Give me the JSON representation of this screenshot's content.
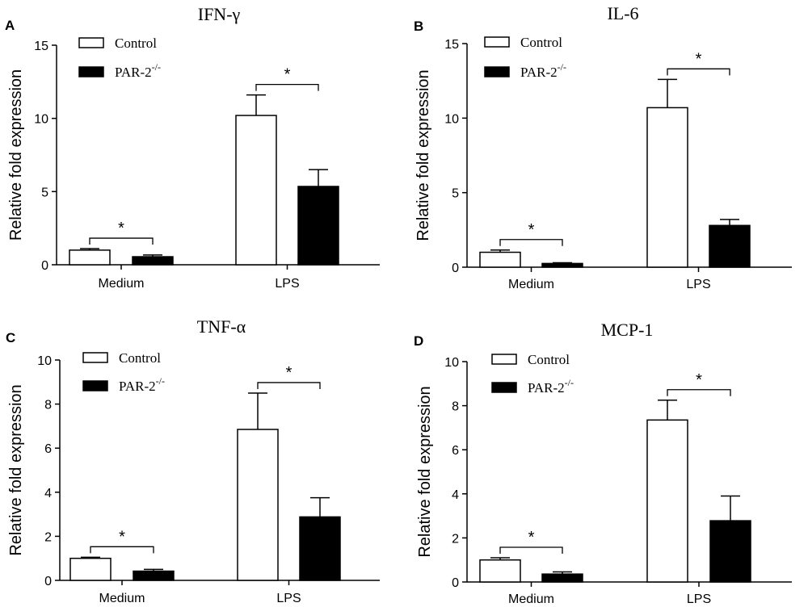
{
  "chart_data": [
    {
      "panel": "A",
      "type": "bar",
      "title": "IFN-γ",
      "ylabel": "Relative fold expression",
      "ylim": [
        0,
        15
      ],
      "yticks": [
        0,
        5,
        10,
        15
      ],
      "categories": [
        "Medium",
        "LPS"
      ],
      "series": [
        {
          "name": "Control",
          "color": "#ffffff",
          "values": [
            1.0,
            10.2
          ],
          "errors": [
            0.1,
            1.4
          ]
        },
        {
          "name": "PAR-2",
          "superscript": "-/-",
          "color": "#000000",
          "values": [
            0.55,
            5.35
          ],
          "errors": [
            0.12,
            1.15
          ]
        }
      ],
      "significance": [
        "*",
        "*"
      ]
    },
    {
      "panel": "B",
      "type": "bar",
      "title": "IL-6",
      "ylabel": "Relative fold expression",
      "ylim": [
        0,
        15
      ],
      "yticks": [
        0,
        5,
        10,
        15
      ],
      "categories": [
        "Medium",
        "LPS"
      ],
      "series": [
        {
          "name": "Control",
          "color": "#ffffff",
          "values": [
            1.0,
            10.7
          ],
          "errors": [
            0.15,
            1.9
          ]
        },
        {
          "name": "PAR-2",
          "superscript": "-/-",
          "color": "#000000",
          "values": [
            0.25,
            2.8
          ],
          "errors": [
            0.05,
            0.4
          ]
        }
      ],
      "significance": [
        "*",
        "*"
      ]
    },
    {
      "panel": "C",
      "type": "bar",
      "title": "TNF-α",
      "ylabel": "Relative fold expression",
      "ylim": [
        0,
        10
      ],
      "yticks": [
        0,
        2,
        4,
        6,
        8,
        10
      ],
      "categories": [
        "Medium",
        "LPS"
      ],
      "series": [
        {
          "name": "Control",
          "color": "#ffffff",
          "values": [
            1.0,
            6.85
          ],
          "errors": [
            0.05,
            1.65
          ]
        },
        {
          "name": "PAR-2",
          "superscript": "-/-",
          "color": "#000000",
          "values": [
            0.42,
            2.88
          ],
          "errors": [
            0.08,
            0.87
          ]
        }
      ],
      "significance": [
        "*",
        "*"
      ]
    },
    {
      "panel": "D",
      "type": "bar",
      "title": "MCP-1",
      "ylabel": "Relative fold expression",
      "ylim": [
        0,
        10
      ],
      "yticks": [
        0,
        2,
        4,
        6,
        8,
        10
      ],
      "categories": [
        "Medium",
        "LPS"
      ],
      "series": [
        {
          "name": "Control",
          "color": "#ffffff",
          "values": [
            1.0,
            7.35
          ],
          "errors": [
            0.1,
            0.9
          ]
        },
        {
          "name": "PAR-2",
          "superscript": "-/-",
          "color": "#000000",
          "values": [
            0.36,
            2.78
          ],
          "errors": [
            0.1,
            1.12
          ]
        }
      ],
      "significance": [
        "*",
        "*"
      ]
    }
  ]
}
